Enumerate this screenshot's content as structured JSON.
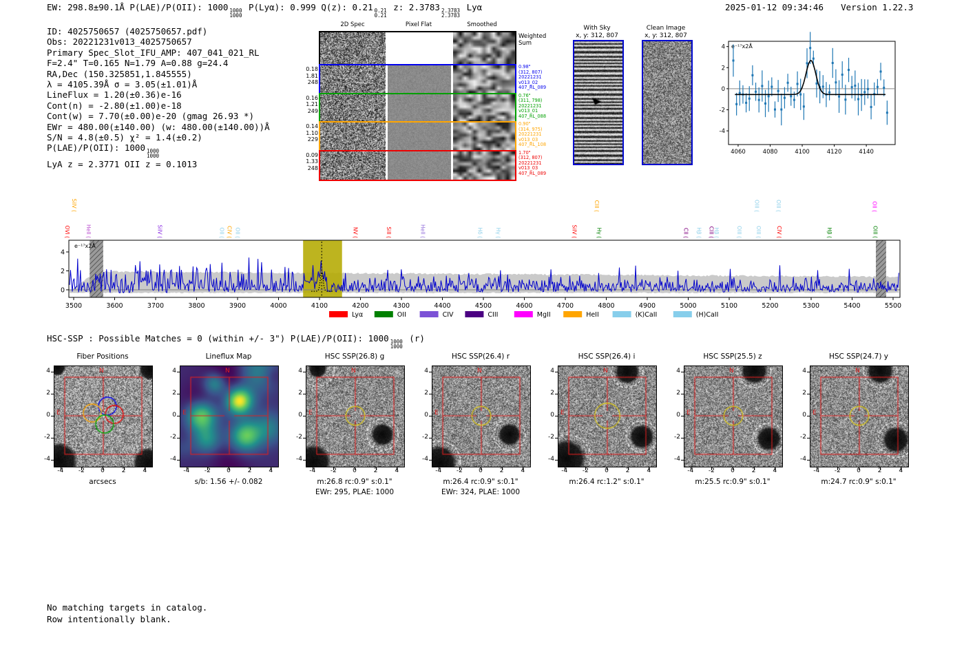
{
  "meta": {
    "timestamp": "2025-01-12 09:34:46",
    "version_label": "Version 1.22.3"
  },
  "header_parts": [
    {
      "t": "EW: 298.8±90.1Å  P(LAE)/P(OII): 1000"
    },
    {
      "frac": [
        "1000",
        "1000"
      ]
    },
    {
      "t": "  P(Lyα): 0.999  Q(z): 0.21"
    },
    {
      "frac": [
        "0.21",
        "0.21"
      ]
    },
    {
      "t": "  z: 2.3783"
    },
    {
      "frac": [
        "2.3783",
        "2.3783"
      ]
    },
    {
      "t": " Lyα"
    }
  ],
  "info_lines": [
    [
      {
        "t": "ID: 4025750657 (4025750657.pdf)"
      }
    ],
    [
      {
        "t": "Obs: 20221231v013_4025750657"
      }
    ],
    [
      {
        "t": "Primary Spec_Slot_IFU_AMP: 407_041_021_RL"
      }
    ],
    [
      {
        "t": "F=2.4\"  T=0.165  N=1.79  A=0.88  g=24.4"
      }
    ],
    [
      {
        "t": "RA,Dec (150.325851,1.845555)"
      }
    ],
    [
      {
        "t": "λ = 4105.39Å  σ = 3.05(±1.01)Å"
      }
    ],
    [
      {
        "t": "LineFlux = 1.20(±0.36)e-16"
      }
    ],
    [
      {
        "t": "Cont(n) = -2.80(±1.00)e-18"
      }
    ],
    [
      {
        "t": "Cont(w) = 7.70(±0.00)e-20 (gmag 26.93 *)"
      }
    ],
    [
      {
        "t": "EWr = 480.00(±140.00) (w: 480.00(±140.00))Å"
      }
    ],
    [
      {
        "t": "S/N = 4.8(±0.5)  χ² = 1.4(±0.2)"
      }
    ],
    [
      {
        "t": "P(LAE)/P(OII): 1000"
      },
      {
        "frac": [
          "1000",
          "1000"
        ]
      }
    ],
    [
      {
        "t": "LyA z = 2.3771  OII z = 0.1013"
      }
    ]
  ],
  "spec2d": {
    "col_titles": [
      "2D Spec",
      "Pixel Flat",
      "Smoothed"
    ],
    "rows": [
      {
        "color": "#000000",
        "left": [],
        "right": [
          "Weighted",
          "Sum"
        ]
      },
      {
        "color": "#0000ee",
        "left": [
          "0.18",
          "1.81",
          "248"
        ],
        "right": [
          "0.98\"",
          "(312, 807)",
          "20221231",
          "v013_02",
          "407_RL_089"
        ]
      },
      {
        "color": "#00a000",
        "left": [
          "0.16",
          "1.21",
          "249"
        ],
        "right": [
          "0.76\"",
          "(311, 798)",
          "20221231",
          "v013_01",
          "407_RL_088"
        ]
      },
      {
        "color": "#ffa500",
        "left": [
          "0.14",
          "1.10",
          "229"
        ],
        "right": [
          "0.90\"",
          "(314, 975)",
          "20221231",
          "v013_03",
          "407_RL_108"
        ]
      },
      {
        "color": "#ee0000",
        "left": [
          "0.09",
          "1.33",
          "248"
        ],
        "right": [
          "1.70\"",
          "(312, 807)",
          "20221231",
          "v013_03",
          "407_RL_089"
        ]
      }
    ]
  },
  "sky_panels": [
    {
      "title": "With Sky",
      "subtitle": "x, y: 312, 807"
    },
    {
      "title": "Clean Image",
      "subtitle": "x, y: 312, 807"
    }
  ],
  "hsc_line_parts": [
    {
      "t": "HSC-SSP : Possible Matches = 0 (within +/- 3\")  P(LAE)/P(OII): 1000"
    },
    {
      "frac": [
        "1000",
        "1000"
      ]
    },
    {
      "t": " (r)"
    }
  ],
  "chart_data": [
    {
      "id": "line_fit_inset",
      "type": "scatter",
      "title": "",
      "ylabel": "e⁻¹⁷x2Å",
      "xlim": [
        4054,
        4158
      ],
      "ylim": [
        -5.3,
        4.5
      ],
      "xticks": [
        4060,
        4080,
        4100,
        4120,
        4140
      ],
      "yticks": [
        4,
        2,
        0,
        -2,
        -4
      ],
      "marker_color": "#1f77b4",
      "fit_color": "#000000",
      "fit": {
        "type": "gaussian",
        "center": 4105.4,
        "sigma": 3.05,
        "amplitude": 3.25,
        "continuum": -0.55
      },
      "series_note": "blue errorbar flux points scattered about continuum -0.5 with emission peak ~2.7 at 4105Å"
    },
    {
      "id": "full_spectrum",
      "type": "line",
      "ylabel": "e⁻¹⁷x2Å",
      "xlim": [
        3488,
        5517
      ],
      "ylim": [
        -0.8,
        5.2
      ],
      "xticks": [
        3500,
        3600,
        3700,
        3800,
        3900,
        4000,
        4100,
        4200,
        4300,
        4400,
        4500,
        4600,
        4700,
        4800,
        4900,
        5000,
        5100,
        5200,
        5300,
        5400,
        5500
      ],
      "yticks": [
        0,
        2,
        4
      ],
      "line_color": "#0000cc",
      "error_band_color": "#c4c4c4",
      "emission_peak": {
        "center": 4105.39,
        "height": 1.9
      },
      "highlight_band": [
        4060,
        4155
      ],
      "highlight_color": "#b4aa00",
      "masked_bands": [
        [
          3539,
          3572
        ],
        [
          5458,
          5483
        ]
      ],
      "legend": [
        {
          "label": "Lyα",
          "color": "#ff0000"
        },
        {
          "label": "OII",
          "color": "#008000"
        },
        {
          "label": "CIV",
          "color": "#7c52d6"
        },
        {
          "label": "CIII",
          "color": "#4b0082"
        },
        {
          "label": "MgII",
          "color": "#ff00ff"
        },
        {
          "label": "HeII",
          "color": "#ffa500"
        },
        {
          "label": "(K)CaII",
          "color": "#87ceeb"
        },
        {
          "label": "(H)CaII",
          "color": "#87ceeb"
        }
      ],
      "line_annotations_high": [
        {
          "wave": 3497,
          "label": "SiIV (",
          "color": "#ffa500"
        },
        {
          "wave": 4772,
          "label": "CIII (",
          "color": "#ffa500"
        },
        {
          "wave": 5163,
          "label": "OIII (",
          "color": "#8fd0ea"
        },
        {
          "wave": 5216,
          "label": "OIII (",
          "color": "#8fd0ea"
        },
        {
          "wave": 5450,
          "label": "OII (",
          "color": "#ff00ff"
        }
      ],
      "line_annotations_low": [
        {
          "wave": 3480,
          "label": "OVI (",
          "color": "#ff0000"
        },
        {
          "wave": 3532,
          "label": "HeII (",
          "color": "#bb4fd0"
        },
        {
          "wave": 3706,
          "label": "SiIV (",
          "color": "#8a2be2"
        },
        {
          "wave": 3857,
          "label": "OII (",
          "color": "#8fd0ea"
        },
        {
          "wave": 3876,
          "label": "CIV (",
          "color": "#ffa500"
        },
        {
          "wave": 3896,
          "label": "OII (",
          "color": "#8fd0ea"
        },
        {
          "wave": 4183,
          "label": "NV (",
          "color": "#ff0000"
        },
        {
          "wave": 4265,
          "label": "SiII (",
          "color": "#ff0000"
        },
        {
          "wave": 4348,
          "label": "HeII (",
          "color": "#9370db"
        },
        {
          "wave": 4487,
          "label": "Hδ (",
          "color": "#8fd0ea"
        },
        {
          "wave": 4532,
          "label": "Hγ (",
          "color": "#8fd0ea"
        },
        {
          "wave": 4718,
          "label": "SiIV (",
          "color": "#ff0000"
        },
        {
          "wave": 4778,
          "label": "Hγ (",
          "color": "#008000"
        },
        {
          "wave": 4990,
          "label": "CII (",
          "color": "#800080"
        },
        {
          "wave": 5022,
          "label": "Hβ (",
          "color": "#8fd0ea"
        },
        {
          "wave": 5052,
          "label": "CIII (",
          "color": "#800080"
        },
        {
          "wave": 5065,
          "label": "Hβ (",
          "color": "#8fd0ea"
        },
        {
          "wave": 5120,
          "label": "OIII (",
          "color": "#8fd0ea"
        },
        {
          "wave": 5167,
          "label": "OIII (",
          "color": "#8fd0ea"
        },
        {
          "wave": 5218,
          "label": "CIV (",
          "color": "#ff0000"
        },
        {
          "wave": 5340,
          "label": "Hβ (",
          "color": "#008000"
        },
        {
          "wave": 5452,
          "label": "OIII (",
          "color": "#008000"
        }
      ]
    }
  ],
  "cutouts": {
    "yticks": [
      "4",
      "2",
      "0",
      "-2",
      "-4"
    ],
    "xticks": [
      "-4",
      "-2",
      "0",
      "2",
      "4"
    ],
    "compass": {
      "n": "N",
      "e": "E"
    },
    "panels": [
      {
        "title": "Fiber Positions",
        "caption1": "arcsecs",
        "caption2": "",
        "type": "fiber",
        "rc": 0.9
      },
      {
        "title": "Lineflux Map",
        "caption1": "s/b: 1.56 +/- 0.082",
        "caption2": "",
        "type": "map",
        "rc": 0.9
      },
      {
        "title": "HSC SSP(26.8) g",
        "caption1": "m:26.8 rc:0.9\"  s:0.1\"",
        "caption2": "EWr: 295, PLAE: 1000",
        "type": "hsc",
        "rc": 0.9
      },
      {
        "title": "HSC SSP(26.4) r",
        "caption1": "m:26.4 rc:0.9\"  s:0.1\"",
        "caption2": "EWr: 324, PLAE: 1000",
        "type": "hsc",
        "rc": 0.9
      },
      {
        "title": "HSC SSP(26.4) i",
        "caption1": "m:26.4 rc:1.2\"  s:0.1\"",
        "caption2": "",
        "type": "hsc",
        "rc": 1.2
      },
      {
        "title": "HSC SSP(25.5) z",
        "caption1": "m:25.5 rc:0.9\"  s:0.1\"",
        "caption2": "",
        "type": "hsc",
        "rc": 0.9
      },
      {
        "title": "HSC SSP(24.7) y",
        "caption1": "m:24.7 rc:0.9\"  s:0.1\"",
        "caption2": "",
        "type": "hsc",
        "rc": 0.9
      }
    ]
  },
  "footer_lines": [
    "No matching targets in catalog.",
    "Row intentionally blank."
  ]
}
